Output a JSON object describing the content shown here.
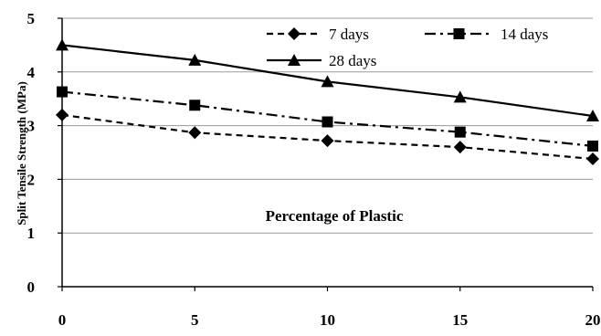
{
  "chart_data": {
    "type": "line",
    "title": "",
    "xlabel": "",
    "ylabel": "Split Tensile Strength  (MPa)",
    "annotation": "Percentage of Plastic",
    "x": [
      0,
      5,
      10,
      15,
      20
    ],
    "xlim": [
      0,
      20
    ],
    "ylim": [
      0,
      5
    ],
    "x_ticks": [
      "0",
      "5",
      "10",
      "15",
      "20"
    ],
    "y_ticks": [
      "0",
      "1",
      "2",
      "3",
      "4",
      "5"
    ],
    "grid": "horizontal",
    "legend_position": "top-right",
    "series": [
      {
        "name": "7 days",
        "values": [
          3.2,
          2.87,
          2.72,
          2.6,
          2.38
        ],
        "marker": "diamond",
        "line": "dashed",
        "color": "#000000"
      },
      {
        "name": "14 days",
        "values": [
          3.63,
          3.38,
          3.07,
          2.88,
          2.62
        ],
        "marker": "square",
        "line": "dash-dot",
        "color": "#000000"
      },
      {
        "name": "28 days",
        "values": [
          4.5,
          4.22,
          3.82,
          3.53,
          3.18
        ],
        "marker": "triangle",
        "line": "solid",
        "color": "#000000"
      }
    ]
  }
}
